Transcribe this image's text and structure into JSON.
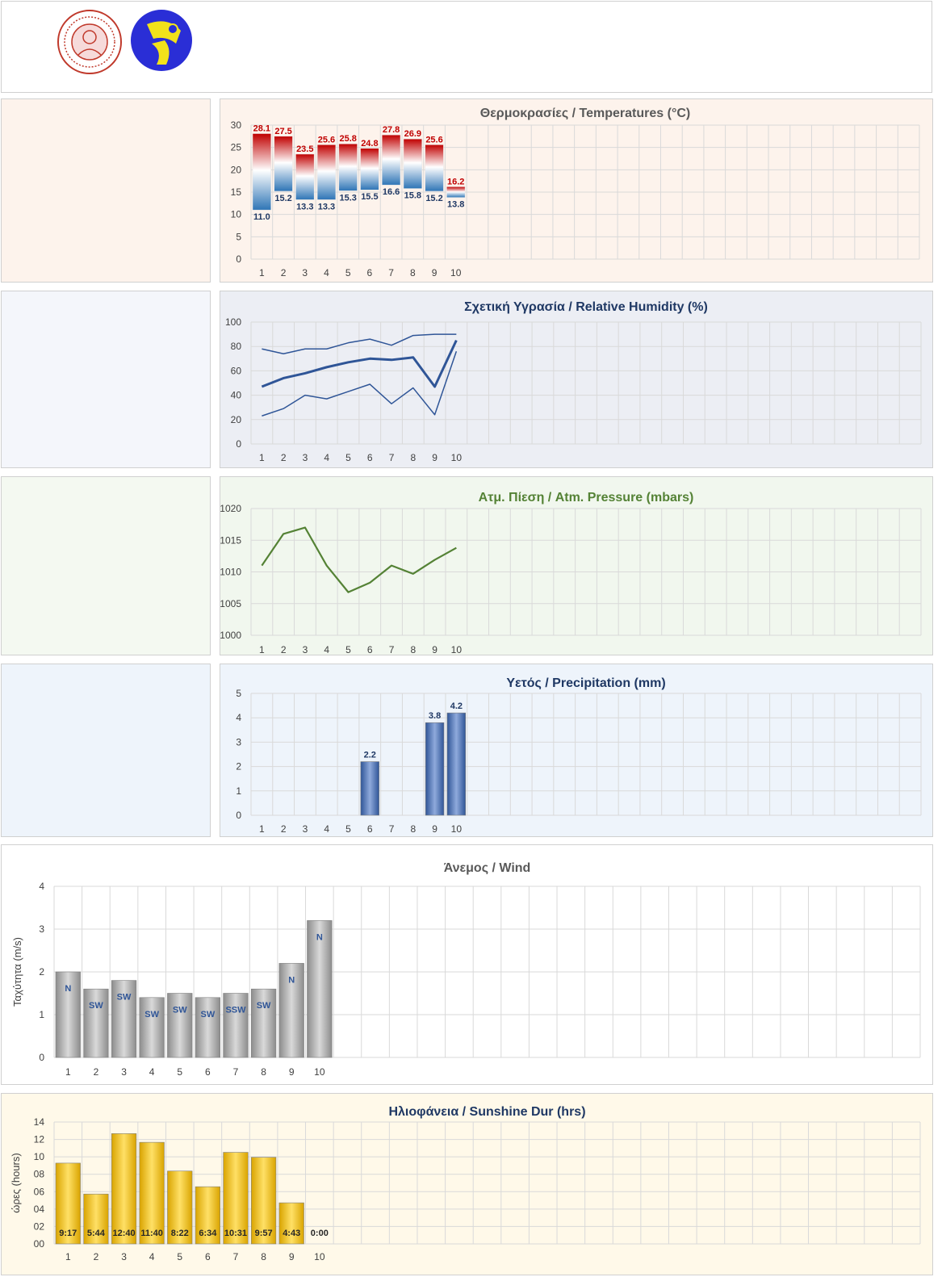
{
  "chart_data": [
    {
      "type": "bar",
      "title": "Θερμοκρασίες / Temperatures (°C)",
      "title_color": "#595959",
      "categories": [
        "1",
        "2",
        "3",
        "4",
        "5",
        "6",
        "7",
        "8",
        "9",
        "10"
      ],
      "series": [
        {
          "name": "max",
          "values": [
            28.1,
            27.5,
            23.5,
            25.6,
            25.8,
            24.8,
            27.8,
            26.9,
            25.6,
            16.2
          ],
          "labels": [
            "28.1",
            "27.5",
            "23.5",
            "25.6",
            "25.8",
            "24.8",
            "27.8",
            "26.9",
            "25.6",
            "16.2"
          ],
          "color": "#c00000"
        },
        {
          "name": "min",
          "values": [
            11.0,
            15.2,
            13.3,
            13.3,
            15.3,
            15.5,
            16.6,
            15.8,
            15.2,
            13.8
          ],
          "labels": [
            "11.0",
            "15.2",
            "13.3",
            "13.3",
            "15.3",
            "15.5",
            "16.6",
            "15.8",
            "15.2",
            "13.8"
          ],
          "color": "#1f3864"
        }
      ],
      "ylim": [
        0,
        30
      ],
      "yticks": [
        "0",
        "5",
        "10",
        "15",
        "20",
        "25",
        "30"
      ],
      "grid": true
    },
    {
      "type": "line",
      "title": "Σχετική Υγρασία / Relative Humidity (%)",
      "title_color": "#1f3864",
      "categories": [
        "1",
        "2",
        "3",
        "4",
        "5",
        "6",
        "7",
        "8",
        "9",
        "10"
      ],
      "series": [
        {
          "name": "max",
          "values": [
            78,
            74,
            78,
            78,
            83,
            86,
            81,
            89,
            90,
            90
          ]
        },
        {
          "name": "mean",
          "values": [
            47,
            54,
            58,
            63,
            67,
            70,
            69,
            71,
            47,
            85
          ]
        },
        {
          "name": "min",
          "values": [
            23,
            29,
            40,
            37,
            43,
            49,
            33,
            46,
            24,
            76
          ]
        }
      ],
      "line_color": "#2f5597",
      "ylim": [
        0,
        100
      ],
      "yticks": [
        "0",
        "20",
        "40",
        "60",
        "80",
        "100"
      ],
      "grid": true
    },
    {
      "type": "line",
      "title": "Ατμ. Πίεση / Atm. Pressure (mbars)",
      "title_color": "#548235",
      "categories": [
        "1",
        "2",
        "3",
        "4",
        "5",
        "6",
        "7",
        "8",
        "9",
        "10"
      ],
      "series": [
        {
          "name": "pressure",
          "values": [
            1011,
            1016,
            1017,
            1011,
            1006.8,
            1008.3,
            1011,
            1009.7,
            1011.9,
            1013.8
          ]
        }
      ],
      "line_color": "#548235",
      "ylim": [
        1000,
        1020
      ],
      "yticks": [
        "1000",
        "1005",
        "1010",
        "1015",
        "1020"
      ],
      "grid": true
    },
    {
      "type": "bar",
      "title": "Υετός / Precipitation (mm)",
      "title_color": "#1f3864",
      "categories": [
        "1",
        "2",
        "3",
        "4",
        "5",
        "6",
        "7",
        "8",
        "9",
        "10"
      ],
      "values": [
        0,
        0,
        0,
        0,
        0,
        2.2,
        0,
        0,
        3.8,
        4.2
      ],
      "labels": [
        "",
        "",
        "",
        "",
        "",
        "2.2",
        "",
        "",
        "3.8",
        "4.2"
      ],
      "bar_color": "#4472c4",
      "ylim": [
        0,
        5
      ],
      "yticks": [
        "0",
        "1",
        "2",
        "3",
        "4",
        "5"
      ],
      "grid": true
    },
    {
      "type": "bar",
      "title": "Άνεμος / Wind",
      "title_color": "#595959",
      "ylabel": "Ταχύτητα  (m/s)",
      "categories": [
        "1",
        "2",
        "3",
        "4",
        "5",
        "6",
        "7",
        "8",
        "9",
        "10"
      ],
      "values": [
        2.0,
        1.6,
        1.8,
        1.4,
        1.5,
        1.4,
        1.5,
        1.6,
        2.2,
        3.2
      ],
      "labels": [
        "N",
        "SW",
        "SW",
        "SW",
        "SW",
        "SW",
        "SSW",
        "SW",
        "N",
        "N"
      ],
      "bar_color": "#a6a6a6",
      "ylim": [
        0,
        4
      ],
      "yticks": [
        "0",
        "1",
        "2",
        "3",
        "4"
      ],
      "grid": true
    },
    {
      "type": "bar",
      "title": "Ηλιοφάνεια / Sunshine Dur (hrs)",
      "title_color": "#1f3864",
      "ylabel": "ώρες (hours)",
      "categories": [
        "1",
        "2",
        "3",
        "4",
        "5",
        "6",
        "7",
        "8",
        "9",
        "10"
      ],
      "values": [
        9.28,
        5.73,
        12.67,
        11.67,
        8.37,
        6.57,
        10.52,
        9.95,
        4.72,
        0
      ],
      "labels": [
        "9:17",
        "5:44",
        "12:40",
        "11:40",
        "8:22",
        "6:34",
        "10:31",
        "9:57",
        "4:43",
        "0:00"
      ],
      "bar_color": "#ffc000",
      "ylim": [
        0,
        14
      ],
      "yticks": [
        "00",
        "02",
        "04",
        "06",
        "08",
        "10",
        "12",
        "14"
      ],
      "grid": true
    }
  ],
  "logos": [
    {
      "name": "university-seal",
      "color": "#c0392b"
    },
    {
      "name": "meteo-lab-logo",
      "color": "#2a2ed6",
      "accent": "#f2e21a"
    }
  ]
}
